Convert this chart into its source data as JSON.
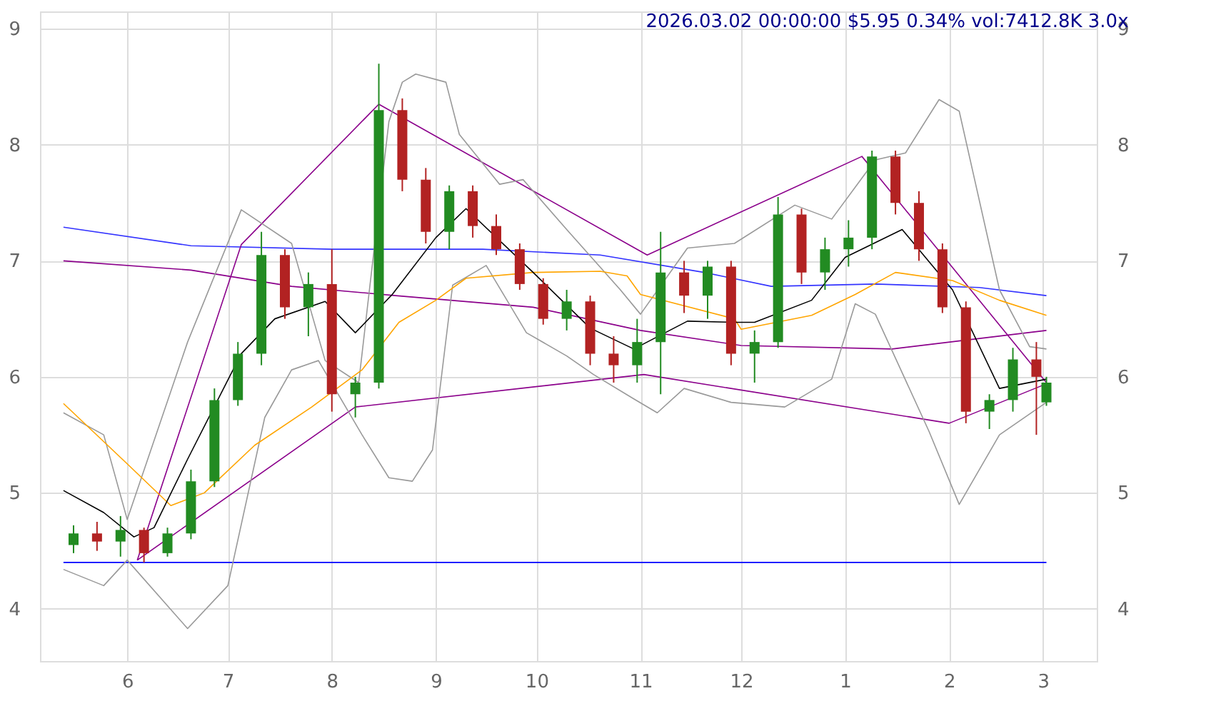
{
  "chart_data": {
    "type": "candlestick",
    "title": "2026.03.02 00:00:00 $5.95 0.34% vol:7412.8K 3.0x",
    "x": [
      "2025-05-16",
      "2025-05-23",
      "2025-05-30",
      "2025-06-06",
      "2025-06-13",
      "2025-06-20",
      "2025-06-27",
      "2025-07-04",
      "2025-07-11",
      "2025-07-18",
      "2025-07-25",
      "2025-08-01",
      "2025-08-08",
      "2025-08-15",
      "2025-08-22",
      "2025-08-29",
      "2025-09-05",
      "2025-09-12",
      "2025-09-19",
      "2025-09-26",
      "2025-10-03",
      "2025-10-10",
      "2025-10-17",
      "2025-10-24",
      "2025-10-31",
      "2025-11-07",
      "2025-11-14",
      "2025-11-21",
      "2025-11-28",
      "2025-12-05",
      "2025-12-12",
      "2025-12-19",
      "2025-12-26",
      "2026-01-02",
      "2026-01-09",
      "2026-01-16",
      "2026-01-23",
      "2026-01-30",
      "2026-02-06",
      "2026-02-13",
      "2026-02-20",
      "2026-02-27",
      "2026-03-02"
    ],
    "ohlc": [
      [
        4.55,
        4.72,
        4.48,
        4.65
      ],
      [
        4.65,
        4.75,
        4.5,
        4.58
      ],
      [
        4.58,
        4.8,
        4.45,
        4.68
      ],
      [
        4.68,
        4.7,
        4.4,
        4.48
      ],
      [
        4.48,
        4.7,
        4.45,
        4.65
      ],
      [
        4.65,
        5.2,
        4.6,
        5.1
      ],
      [
        5.1,
        5.9,
        5.05,
        5.8
      ],
      [
        5.8,
        6.3,
        5.75,
        6.2
      ],
      [
        6.2,
        7.25,
        6.1,
        7.05
      ],
      [
        7.05,
        7.1,
        6.5,
        6.6
      ],
      [
        6.6,
        6.9,
        6.35,
        6.8
      ],
      [
        6.8,
        7.1,
        5.7,
        5.85
      ],
      [
        5.85,
        6.0,
        5.65,
        5.95
      ],
      [
        5.95,
        8.7,
        5.9,
        8.3
      ],
      [
        8.3,
        8.4,
        7.6,
        7.7
      ],
      [
        7.7,
        7.8,
        7.15,
        7.25
      ],
      [
        7.25,
        7.65,
        7.1,
        7.6
      ],
      [
        7.6,
        7.65,
        7.2,
        7.3
      ],
      [
        7.3,
        7.4,
        7.05,
        7.1
      ],
      [
        7.1,
        7.15,
        6.75,
        6.8
      ],
      [
        6.8,
        6.85,
        6.45,
        6.5
      ],
      [
        6.5,
        6.75,
        6.4,
        6.65
      ],
      [
        6.65,
        6.7,
        6.1,
        6.2
      ],
      [
        6.2,
        6.35,
        5.95,
        6.1
      ],
      [
        6.1,
        6.5,
        5.95,
        6.3
      ],
      [
        6.3,
        7.25,
        5.85,
        6.9
      ],
      [
        6.9,
        7.0,
        6.55,
        6.7
      ],
      [
        6.7,
        7.0,
        6.5,
        6.95
      ],
      [
        6.95,
        7.0,
        6.1,
        6.2
      ],
      [
        6.2,
        6.4,
        5.95,
        6.3
      ],
      [
        6.3,
        7.55,
        6.25,
        7.4
      ],
      [
        7.4,
        7.45,
        6.8,
        6.9
      ],
      [
        6.9,
        7.2,
        6.75,
        7.1
      ],
      [
        7.1,
        7.35,
        6.95,
        7.2
      ],
      [
        7.2,
        7.95,
        7.1,
        7.9
      ],
      [
        7.9,
        7.95,
        7.4,
        7.5
      ],
      [
        7.5,
        7.6,
        7.0,
        7.1
      ],
      [
        7.1,
        7.15,
        6.55,
        6.6
      ],
      [
        6.6,
        6.65,
        5.6,
        5.7
      ],
      [
        5.7,
        5.85,
        5.55,
        5.8
      ],
      [
        5.8,
        6.25,
        5.7,
        6.15
      ],
      [
        6.15,
        6.3,
        5.5,
        6.0
      ],
      [
        5.78,
        6.0,
        5.75,
        5.95
      ]
    ],
    "colors": [
      "#228b22",
      "#b22222",
      "#228b22",
      "#b22222",
      "#228b22",
      "#228b22",
      "#228b22",
      "#228b22",
      "#228b22",
      "#b22222",
      "#228b22",
      "#b22222",
      "#228b22",
      "#228b22",
      "#b22222",
      "#b22222",
      "#228b22",
      "#b22222",
      "#b22222",
      "#b22222",
      "#b22222",
      "#228b22",
      "#b22222",
      "#b22222",
      "#228b22",
      "#228b22",
      "#b22222",
      "#228b22",
      "#b22222",
      "#228b22",
      "#228b22",
      "#b22222",
      "#228b22",
      "#228b22",
      "#228b22",
      "#b22222",
      "#b22222",
      "#b22222",
      "#b22222",
      "#228b22",
      "#228b22",
      "#b22222",
      "#228b22"
    ],
    "xlim": [
      "2025-05-06",
      "2026-03-17"
    ],
    "xticks": [
      {
        "value": "2025-06-01",
        "label": "6"
      },
      {
        "value": "2025-07-01",
        "label": "7"
      },
      {
        "value": "2025-08-01",
        "label": "8"
      },
      {
        "value": "2025-09-01",
        "label": "9"
      },
      {
        "value": "2025-10-01",
        "label": "10"
      },
      {
        "value": "2025-11-01",
        "label": "11"
      },
      {
        "value": "2025-12-01",
        "label": "12"
      },
      {
        "value": "2026-01-01",
        "label": "1"
      },
      {
        "value": "2026-02-01",
        "label": "2"
      },
      {
        "value": "2026-03-01",
        "label": "3"
      }
    ],
    "ylim": [
      3.55,
      9.15
    ],
    "yticks": [
      4,
      5,
      6,
      7,
      8,
      9
    ],
    "y2lim": [
      3.55,
      9.15
    ],
    "y2ticks": [
      4,
      5,
      6,
      7,
      8,
      9
    ],
    "grid": true,
    "series": [
      {
        "type": "line",
        "color": "#0000ff",
        "x": [
          "2025-05-13",
          "2026-03-02"
        ],
        "values": [
          4.4,
          4.4
        ]
      },
      {
        "type": "line",
        "color": "#3333ff",
        "x": [
          "2025-05-13",
          "2025-06-20",
          "2025-08-01",
          "2025-09-15",
          "2025-10-20",
          "2025-11-20",
          "2025-12-10",
          "2026-01-10",
          "2026-02-10",
          "2026-03-02"
        ],
        "values": [
          7.29,
          7.13,
          7.1,
          7.1,
          7.05,
          6.9,
          6.78,
          6.8,
          6.77,
          6.7
        ]
      },
      {
        "type": "line",
        "color": "#8b008b",
        "x": [
          "2025-05-13",
          "2025-06-20",
          "2025-07-20",
          "2025-08-20",
          "2025-09-30",
          "2025-11-01",
          "2025-12-01",
          "2026-01-15",
          "2026-03-02"
        ],
        "values": [
          7.0,
          6.92,
          6.78,
          6.7,
          6.6,
          6.4,
          6.27,
          6.24,
          6.4
        ]
      },
      {
        "type": "line",
        "color": "#8b008b",
        "x": [
          "2025-06-04",
          "2025-07-05",
          "2025-08-15",
          "2025-11-03",
          "2026-01-06",
          "2026-03-02"
        ],
        "values": [
          4.42,
          7.14,
          8.35,
          7.05,
          7.9,
          5.95
        ]
      },
      {
        "type": "line",
        "color": "#8b008b",
        "x": [
          "2025-06-04",
          "2025-08-08",
          "2025-11-02",
          "2026-02-01",
          "2026-03-02"
        ],
        "values": [
          4.42,
          5.74,
          6.02,
          5.6,
          5.94
        ]
      },
      {
        "type": "line",
        "color": "#999999",
        "x": [
          "2025-05-13",
          "2025-05-25",
          "2025-06-01",
          "2025-06-19",
          "2025-07-05",
          "2025-07-20",
          "2025-07-30",
          "2025-08-09",
          "2025-08-18",
          "2025-08-22",
          "2025-08-26",
          "2025-09-04",
          "2025-09-08",
          "2025-09-20",
          "2025-09-27",
          "2025-10-10",
          "2025-10-26",
          "2025-11-01",
          "2025-11-15",
          "2025-11-29",
          "2025-12-17",
          "2025-12-28",
          "2026-01-10",
          "2026-01-19",
          "2026-01-29",
          "2026-02-04",
          "2026-02-16",
          "2026-02-25",
          "2026-03-02"
        ],
        "values": [
          5.69,
          5.5,
          4.77,
          6.3,
          7.44,
          7.15,
          6.14,
          5.95,
          8.2,
          8.54,
          8.61,
          8.54,
          8.09,
          7.66,
          7.7,
          7.27,
          6.75,
          6.54,
          7.11,
          7.15,
          7.48,
          7.36,
          7.87,
          7.93,
          8.39,
          8.29,
          6.75,
          6.26,
          6.24
        ]
      },
      {
        "type": "line",
        "color": "#999999",
        "x": [
          "2025-05-13",
          "2025-05-25",
          "2025-06-01",
          "2025-06-19",
          "2025-07-01",
          "2025-07-12",
          "2025-07-20",
          "2025-07-28",
          "2025-08-10",
          "2025-08-18",
          "2025-08-25",
          "2025-08-31",
          "2025-09-06",
          "2025-09-16",
          "2025-09-28",
          "2025-10-10",
          "2025-10-18",
          "2025-10-30",
          "2025-11-06",
          "2025-11-14",
          "2025-11-28",
          "2025-12-14",
          "2025-12-28",
          "2026-01-04",
          "2026-01-10",
          "2026-01-26",
          "2026-02-04",
          "2026-02-16",
          "2026-03-02"
        ],
        "values": [
          4.34,
          4.2,
          4.42,
          3.83,
          4.2,
          5.65,
          6.06,
          6.14,
          5.5,
          5.13,
          5.1,
          5.37,
          6.79,
          6.96,
          6.38,
          6.18,
          6.02,
          5.81,
          5.69,
          5.9,
          5.78,
          5.74,
          5.98,
          6.63,
          6.54,
          5.53,
          4.9,
          5.5,
          5.78
        ]
      },
      {
        "type": "line",
        "color": "#ffa500",
        "x": [
          "2025-05-13",
          "2025-06-01",
          "2025-06-14",
          "2025-06-24",
          "2025-07-09",
          "2025-07-26",
          "2025-08-10",
          "2025-08-21",
          "2025-09-01",
          "2025-09-10",
          "2025-09-30",
          "2025-10-20",
          "2025-10-28",
          "2025-11-01",
          "2025-11-29",
          "2025-12-01",
          "2025-12-22",
          "2026-01-04",
          "2026-01-16",
          "2026-02-02",
          "2026-02-16",
          "2026-03-02"
        ],
        "values": [
          5.77,
          5.25,
          4.89,
          5.0,
          5.41,
          5.74,
          6.06,
          6.47,
          6.66,
          6.85,
          6.9,
          6.91,
          6.87,
          6.71,
          6.5,
          6.41,
          6.53,
          6.71,
          6.9,
          6.83,
          6.66,
          6.53
        ]
      },
      {
        "type": "line",
        "color": "#000000",
        "x": [
          "2025-05-13",
          "2025-05-25",
          "2025-06-03",
          "2025-06-09",
          "2025-06-19",
          "2025-07-05",
          "2025-07-15",
          "2025-07-30",
          "2025-08-08",
          "2025-08-19",
          "2025-09-01",
          "2025-09-10",
          "2025-09-30",
          "2025-10-17",
          "2025-10-30",
          "2025-11-15",
          "2025-11-29",
          "2025-12-05",
          "2025-12-22",
          "2026-01-01",
          "2026-01-18",
          "2026-02-02",
          "2026-02-16",
          "2026-03-02"
        ],
        "values": [
          5.02,
          4.83,
          4.62,
          4.7,
          5.29,
          6.2,
          6.5,
          6.65,
          6.38,
          6.71,
          7.2,
          7.45,
          6.9,
          6.42,
          6.24,
          6.48,
          6.47,
          6.47,
          6.66,
          7.03,
          7.27,
          6.75,
          5.9,
          5.98
        ]
      }
    ]
  }
}
